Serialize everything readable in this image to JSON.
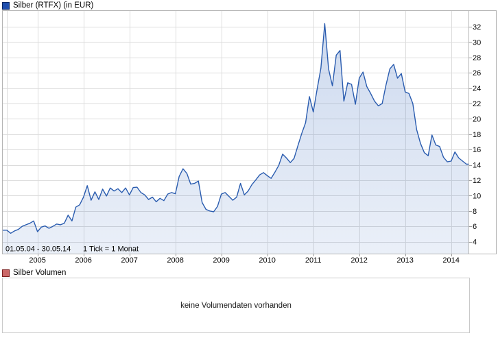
{
  "chart": {
    "title": "Silber (RTFX) (in EUR)"
  },
  "volume": {
    "title": "Silber Volumen",
    "message": "keine Volumendaten vorhanden"
  },
  "colors": {
    "line": "#2a5caf",
    "area_fill_top": "rgba(86,128,199,0.30)",
    "area_fill_bottom": "rgba(86,128,199,0.12)",
    "grid": "#dcdcdc",
    "frame": "#b3b3b3",
    "tick": "#9a9a9a",
    "axis_text": "#000000",
    "period_text": "#a9b0ba",
    "legend_price_swatch": "#1e4eae",
    "legend_volume_swatch": "#ca6767"
  },
  "chart_data": {
    "type": "area",
    "title": "Silber (RTFX) (in EUR)",
    "series_name": "Silber (RTFX) in EUR",
    "unit": "EUR",
    "period_label": "01.05.04 - 30.05.14",
    "tick_note": "1 Tick = 1 Monat",
    "start": "2004-05",
    "end": "2014-05",
    "x_interval": "1 month",
    "x_tick_labels": [
      "2005",
      "2006",
      "2007",
      "2008",
      "2009",
      "2010",
      "2011",
      "2012",
      "2013",
      "2014"
    ],
    "y_ticks": [
      4,
      6,
      8,
      10,
      12,
      14,
      16,
      18,
      20,
      22,
      24,
      26,
      28,
      30,
      32
    ],
    "ylim": [
      2.4,
      34.1
    ],
    "grid": true,
    "legend_position": "top-left",
    "values": [
      5.5,
      5.1,
      5.4,
      5.6,
      6.0,
      6.2,
      6.4,
      6.7,
      5.3,
      5.9,
      6.05,
      5.75,
      6.0,
      6.3,
      6.2,
      6.4,
      7.45,
      6.7,
      8.5,
      8.8,
      9.8,
      11.3,
      9.4,
      10.5,
      9.5,
      10.85,
      9.95,
      11.0,
      10.6,
      10.9,
      10.4,
      11.0,
      10.1,
      11.05,
      11.1,
      10.4,
      10.1,
      9.5,
      9.8,
      9.2,
      9.65,
      9.35,
      10.2,
      10.4,
      10.25,
      12.5,
      13.5,
      12.9,
      11.5,
      11.6,
      11.9,
      9.1,
      8.2,
      8.0,
      7.9,
      8.6,
      10.2,
      10.4,
      9.9,
      9.4,
      9.8,
      11.6,
      10.1,
      10.6,
      11.45,
      12.05,
      12.7,
      13.0,
      12.6,
      12.25,
      13.05,
      13.95,
      15.4,
      14.9,
      14.3,
      14.85,
      16.5,
      18.1,
      19.5,
      22.9,
      20.9,
      23.8,
      26.6,
      32.4,
      26.5,
      24.3,
      28.3,
      28.9,
      22.3,
      24.7,
      24.5,
      21.9,
      25.3,
      26.1,
      24.2,
      23.3,
      22.3,
      21.7,
      22.0,
      24.4,
      26.5,
      27.1,
      25.3,
      25.9,
      23.5,
      23.3,
      22.0,
      18.6,
      16.8,
      15.6,
      15.2,
      17.9,
      16.6,
      16.4,
      15.0,
      14.4,
      14.5,
      15.7,
      14.9,
      14.5,
      14.1
    ]
  }
}
